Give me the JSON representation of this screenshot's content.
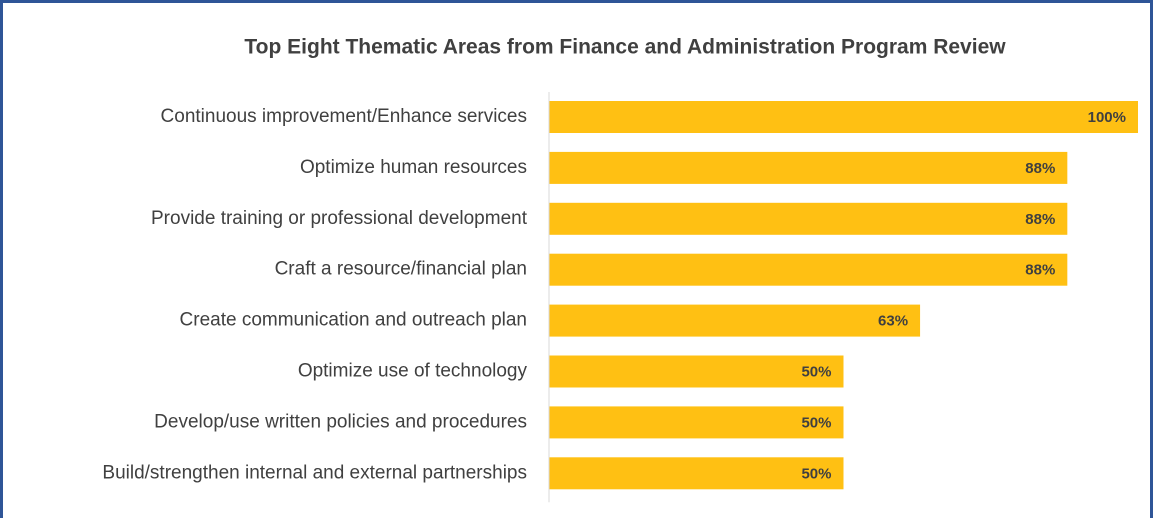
{
  "chart_data": {
    "type": "barh",
    "title": "Top Eight Thematic Areas from Finance and Administration Program Review",
    "categories": [
      "Continuous improvement/Enhance services",
      "Optimize human resources",
      "Provide training or professional development",
      "Craft a resource/financial plan",
      "Create communication and outreach plan",
      "Optimize use of technology",
      "Develop/use written policies and procedures",
      "Build/strengthen internal and external partnerships"
    ],
    "values": [
      100,
      88,
      88,
      88,
      63,
      50,
      50,
      50
    ],
    "value_labels": [
      "100%",
      "88%",
      "88%",
      "88%",
      "63%",
      "50%",
      "50%",
      "50%"
    ],
    "color": "#ffc013",
    "xlim": [
      0,
      100
    ]
  }
}
